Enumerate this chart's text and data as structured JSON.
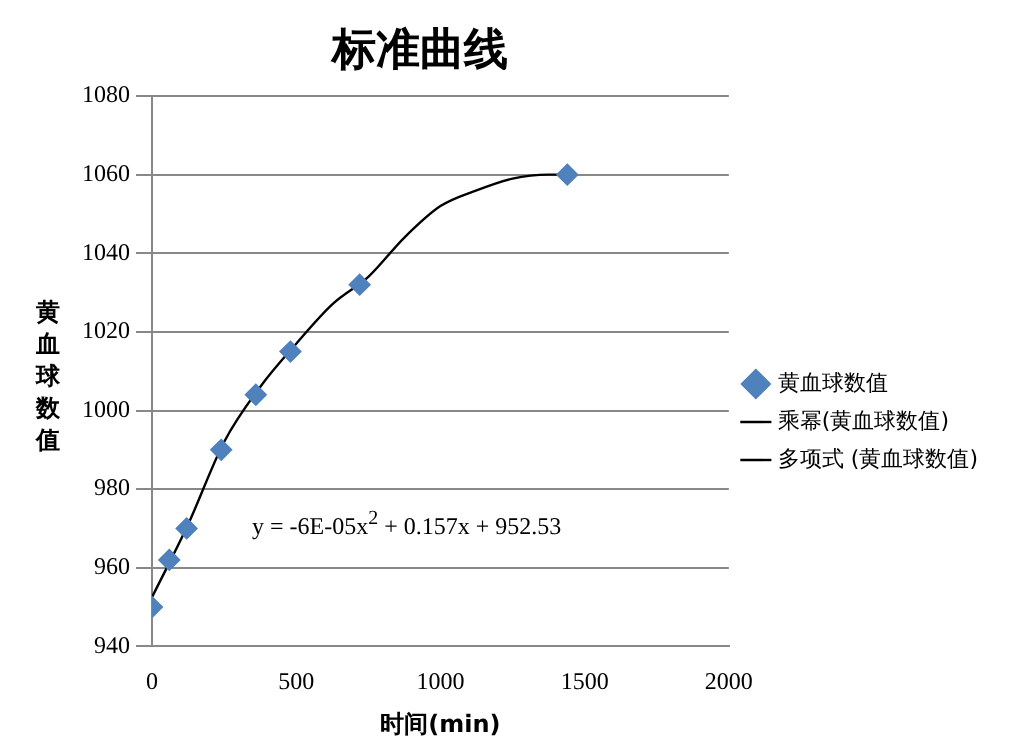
{
  "chart_data": {
    "type": "scatter",
    "title": "标准曲线",
    "xlabel": "时间(min)",
    "ylabel": "黄血球数值",
    "xlim": [
      0,
      2000
    ],
    "xticks": [
      0,
      500,
      1000,
      1500,
      2000
    ],
    "ylim": [
      940,
      1080
    ],
    "yticks": [
      940,
      960,
      980,
      1000,
      1020,
      1040,
      1060,
      1080
    ],
    "grid": "y",
    "legend": "right",
    "marker": "diamond",
    "series": [
      {
        "name": "黄血球数值",
        "type": "scatter",
        "color": "#4f81bd",
        "x": [
          0,
          60,
          120,
          240,
          360,
          480,
          720,
          1440
        ],
        "values": [
          950,
          962,
          970,
          990,
          1004,
          1015,
          1032,
          1060
        ]
      },
      {
        "name": "乘幂(黄血球数值)",
        "type": "line",
        "color": "#000000",
        "marker": "none"
      },
      {
        "name": "多项式 (黄血球数值)",
        "type": "line",
        "color": "#000000",
        "marker": "none",
        "x": [
          0,
          125,
          250,
          375,
          500,
          625,
          750,
          875,
          1000,
          1125,
          1250,
          1375,
          1440
        ],
        "values": [
          952.5,
          971,
          992,
          1006,
          1017,
          1027,
          1034,
          1044,
          1052,
          1056,
          1059,
          1060,
          1060
        ]
      }
    ],
    "annotations": [
      "y = -6E-05x$^{2}$ + 0.157x + 952.53"
    ]
  }
}
